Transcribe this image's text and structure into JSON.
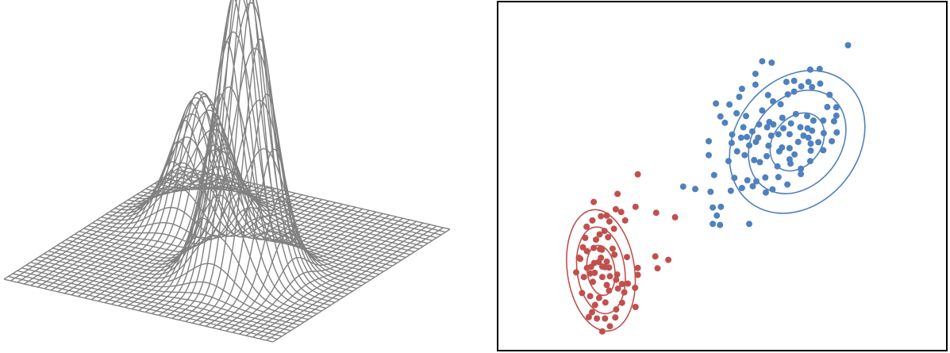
{
  "colors": {
    "wireframe": "#808080",
    "cluster_red": "#c0504d",
    "cluster_blue": "#4f81bd",
    "frame": "#000000",
    "background": "#ffffff"
  },
  "chart_data": [
    {
      "type": "surface",
      "style": "wireframe",
      "grid_resolution": 40,
      "peaks": [
        {
          "name": "",
          "center": [
            0.29,
            0.33
          ],
          "height": 0.42,
          "sigma": 0.085
        },
        {
          "name": "",
          "center": [
            0.64,
            0.62
          ],
          "height": 1.0,
          "sigma": 0.085
        }
      ],
      "title": "",
      "xlabel": "",
      "ylabel": "",
      "zlabel": "",
      "axes_visible": false
    },
    {
      "type": "scatter",
      "title": "",
      "xlabel": "",
      "ylabel": "",
      "xlim": [
        0,
        1
      ],
      "ylim": [
        0,
        1
      ],
      "axes_ticks_visible": false,
      "grid": false,
      "series": [
        {
          "color": "#c0504d",
          "center": [
            0.23,
            0.23
          ],
          "contours": [
            {
              "rx": 0.031,
              "ry": 0.072,
              "angle": -8
            },
            {
              "rx": 0.053,
              "ry": 0.125,
              "angle": -8
            },
            {
              "rx": 0.075,
              "ry": 0.175,
              "angle": -8
            }
          ],
          "points": [
            [
              0.312,
              0.505
            ],
            [
              0.267,
              0.449
            ],
            [
              0.214,
              0.426
            ],
            [
              0.23,
              0.385
            ],
            [
              0.198,
              0.355
            ],
            [
              0.249,
              0.37
            ],
            [
              0.259,
              0.349
            ],
            [
              0.284,
              0.373
            ],
            [
              0.263,
              0.405
            ],
            [
              0.353,
              0.395
            ],
            [
              0.395,
              0.382
            ],
            [
              0.275,
              0.397
            ],
            [
              0.307,
              0.412
            ],
            [
              0.243,
              0.387
            ],
            [
              0.211,
              0.373
            ],
            [
              0.238,
              0.343
            ],
            [
              0.246,
              0.325
            ],
            [
              0.227,
              0.333
            ],
            [
              0.195,
              0.323
            ],
            [
              0.219,
              0.318
            ],
            [
              0.214,
              0.294
            ],
            [
              0.19,
              0.296
            ],
            [
              0.181,
              0.266
            ],
            [
              0.208,
              0.24
            ],
            [
              0.216,
              0.223
            ],
            [
              0.23,
              0.266
            ],
            [
              0.232,
              0.289
            ],
            [
              0.243,
              0.255
            ],
            [
              0.26,
              0.275
            ],
            [
              0.233,
              0.241
            ],
            [
              0.206,
              0.221
            ],
            [
              0.199,
              0.237
            ],
            [
              0.192,
              0.211
            ],
            [
              0.212,
              0.197
            ],
            [
              0.233,
              0.211
            ],
            [
              0.243,
              0.188
            ],
            [
              0.248,
              0.172
            ],
            [
              0.264,
              0.203
            ],
            [
              0.268,
              0.178
            ],
            [
              0.277,
              0.191
            ],
            [
              0.29,
              0.192
            ],
            [
              0.282,
              0.167
            ],
            [
              0.239,
              0.239
            ],
            [
              0.225,
              0.254
            ],
            [
              0.248,
              0.238
            ],
            [
              0.25,
              0.213
            ],
            [
              0.226,
              0.151
            ],
            [
              0.217,
              0.131
            ],
            [
              0.206,
              0.156
            ],
            [
              0.21,
              0.11
            ],
            [
              0.203,
              0.096
            ],
            [
              0.221,
              0.092
            ],
            [
              0.239,
              0.092
            ],
            [
              0.25,
              0.07
            ],
            [
              0.233,
              0.055
            ],
            [
              0.24,
              0.138
            ],
            [
              0.264,
              0.118
            ],
            [
              0.262,
              0.095
            ],
            [
              0.307,
              0.125
            ],
            [
              0.277,
              0.137
            ],
            [
              0.306,
              0.18
            ],
            [
              0.351,
              0.27
            ],
            [
              0.38,
              0.26
            ],
            [
              0.356,
              0.236
            ],
            [
              0.312,
              0.217
            ],
            [
              0.312,
              0.237
            ],
            [
              0.288,
              0.268
            ],
            [
              0.188,
              0.165
            ],
            [
              0.175,
              0.224
            ],
            [
              0.184,
              0.263
            ],
            [
              0.256,
              0.292
            ],
            [
              0.228,
              0.291
            ],
            [
              0.199,
              0.285
            ],
            [
              0.266,
              0.218
            ],
            [
              0.215,
              0.251
            ]
          ]
        },
        {
          "color": "#4f81bd",
          "center": [
            0.667,
            0.598
          ],
          "contours": [
            {
              "rx": 0.053,
              "ry": 0.091,
              "angle": 38
            },
            {
              "rx": 0.097,
              "ry": 0.161,
              "angle": 38
            },
            {
              "rx": 0.137,
              "ry": 0.22,
              "angle": 38
            }
          ],
          "points": [
            [
              0.78,
              0.875
            ],
            [
              0.696,
              0.805
            ],
            [
              0.717,
              0.807
            ],
            [
              0.61,
              0.825
            ],
            [
              0.574,
              0.793
            ],
            [
              0.589,
              0.829
            ],
            [
              0.643,
              0.77
            ],
            [
              0.66,
              0.773
            ],
            [
              0.676,
              0.757
            ],
            [
              0.692,
              0.77
            ],
            [
              0.718,
              0.765
            ],
            [
              0.7,
              0.755
            ],
            [
              0.66,
              0.742
            ],
            [
              0.602,
              0.732
            ],
            [
              0.574,
              0.762
            ],
            [
              0.544,
              0.75
            ],
            [
              0.486,
              0.708
            ],
            [
              0.516,
              0.705
            ],
            [
              0.538,
              0.727
            ],
            [
              0.553,
              0.672
            ],
            [
              0.532,
              0.68
            ],
            [
              0.496,
              0.671
            ],
            [
              0.506,
              0.653
            ],
            [
              0.547,
              0.64
            ],
            [
              0.522,
              0.619
            ],
            [
              0.542,
              0.61
            ],
            [
              0.56,
              0.588
            ],
            [
              0.58,
              0.61
            ],
            [
              0.609,
              0.616
            ],
            [
              0.603,
              0.587
            ],
            [
              0.627,
              0.571
            ],
            [
              0.65,
              0.58
            ],
            [
              0.669,
              0.598
            ],
            [
              0.692,
              0.61
            ],
            [
              0.674,
              0.64
            ],
            [
              0.664,
              0.678
            ],
            [
              0.689,
              0.672
            ],
            [
              0.703,
              0.659
            ],
            [
              0.734,
              0.698
            ],
            [
              0.739,
              0.733
            ],
            [
              0.754,
              0.697
            ],
            [
              0.754,
              0.673
            ],
            [
              0.726,
              0.623
            ],
            [
              0.714,
              0.597
            ],
            [
              0.697,
              0.573
            ],
            [
              0.696,
              0.543
            ],
            [
              0.675,
              0.521
            ],
            [
              0.652,
              0.536
            ],
            [
              0.623,
              0.528
            ],
            [
              0.584,
              0.54
            ],
            [
              0.596,
              0.496
            ],
            [
              0.625,
              0.497
            ],
            [
              0.645,
              0.476
            ],
            [
              0.675,
              0.506
            ],
            [
              0.63,
              0.706
            ],
            [
              0.646,
              0.734
            ],
            [
              0.613,
              0.714
            ],
            [
              0.589,
              0.688
            ],
            [
              0.614,
              0.648
            ],
            [
              0.636,
              0.637
            ],
            [
              0.633,
              0.582
            ],
            [
              0.599,
              0.557
            ],
            [
              0.571,
              0.546
            ],
            [
              0.55,
              0.56
            ],
            [
              0.533,
              0.571
            ],
            [
              0.521,
              0.595
            ],
            [
              0.47,
              0.6
            ],
            [
              0.47,
              0.56
            ],
            [
              0.514,
              0.543
            ],
            [
              0.482,
              0.503
            ],
            [
              0.527,
              0.495
            ],
            [
              0.556,
              0.488
            ],
            [
              0.568,
              0.471
            ],
            [
              0.576,
              0.485
            ],
            [
              0.597,
              0.453
            ],
            [
              0.612,
              0.462
            ],
            [
              0.544,
              0.466
            ],
            [
              0.519,
              0.458
            ],
            [
              0.44,
              0.463
            ],
            [
              0.413,
              0.47
            ],
            [
              0.474,
              0.455
            ],
            [
              0.479,
              0.41
            ],
            [
              0.497,
              0.412
            ],
            [
              0.488,
              0.387
            ],
            [
              0.479,
              0.363
            ],
            [
              0.495,
              0.36
            ],
            [
              0.56,
              0.363
            ],
            [
              0.65,
              0.548
            ],
            [
              0.661,
              0.562
            ],
            [
              0.681,
              0.616
            ],
            [
              0.7,
              0.63
            ],
            [
              0.725,
              0.659
            ],
            [
              0.749,
              0.657
            ],
            [
              0.755,
              0.625
            ],
            [
              0.744,
              0.6
            ],
            [
              0.725,
              0.574
            ],
            [
              0.697,
              0.593
            ],
            [
              0.69,
              0.637
            ],
            [
              0.65,
              0.62
            ],
            [
              0.625,
              0.62
            ],
            [
              0.6,
              0.64
            ],
            [
              0.582,
              0.648
            ],
            [
              0.567,
              0.628
            ],
            [
              0.555,
              0.612
            ],
            [
              0.575,
              0.598
            ],
            [
              0.605,
              0.655
            ],
            [
              0.634,
              0.667
            ],
            [
              0.653,
              0.651
            ]
          ]
        }
      ]
    }
  ]
}
